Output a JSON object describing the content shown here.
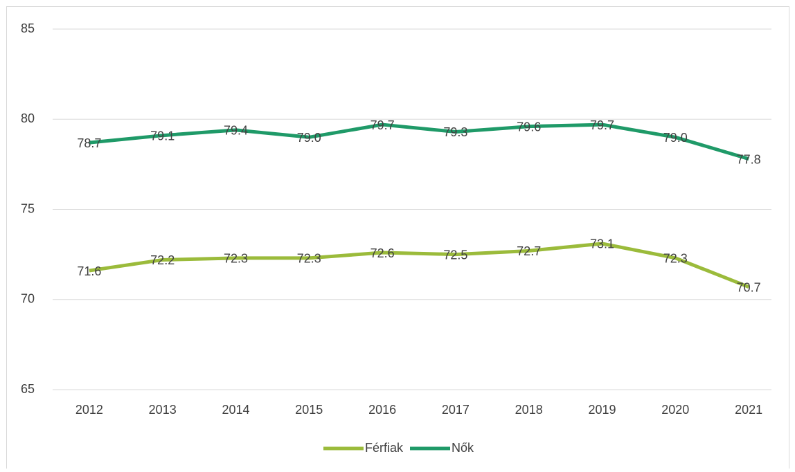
{
  "chart_data": {
    "type": "line",
    "categories": [
      "2012",
      "2013",
      "2014",
      "2015",
      "2016",
      "2017",
      "2018",
      "2019",
      "2020",
      "2021"
    ],
    "series": [
      {
        "name": "Férfiak",
        "color": "#9bbb3b",
        "values": [
          71.6,
          72.2,
          72.3,
          72.3,
          72.6,
          72.5,
          72.7,
          73.1,
          72.3,
          70.7
        ],
        "value_labels": [
          "71.6",
          "72.2",
          "72.3",
          "72.3",
          "72.6",
          "72.5",
          "72.7",
          "73.1",
          "72.3",
          "70.7"
        ]
      },
      {
        "name": "Nők",
        "color": "#1f9a68",
        "values": [
          78.7,
          79.1,
          79.4,
          79.0,
          79.7,
          79.3,
          79.6,
          79.7,
          79.0,
          77.8
        ],
        "value_labels": [
          "78.7",
          "79.1",
          "79.4",
          "79.0",
          "79.7",
          "79.3",
          "79.6",
          "79.7",
          "79.0",
          "77.8"
        ]
      }
    ],
    "ylim": [
      65,
      85
    ],
    "yticks": [
      65,
      70,
      75,
      80,
      85
    ],
    "grid": true,
    "legend": "bottom"
  }
}
